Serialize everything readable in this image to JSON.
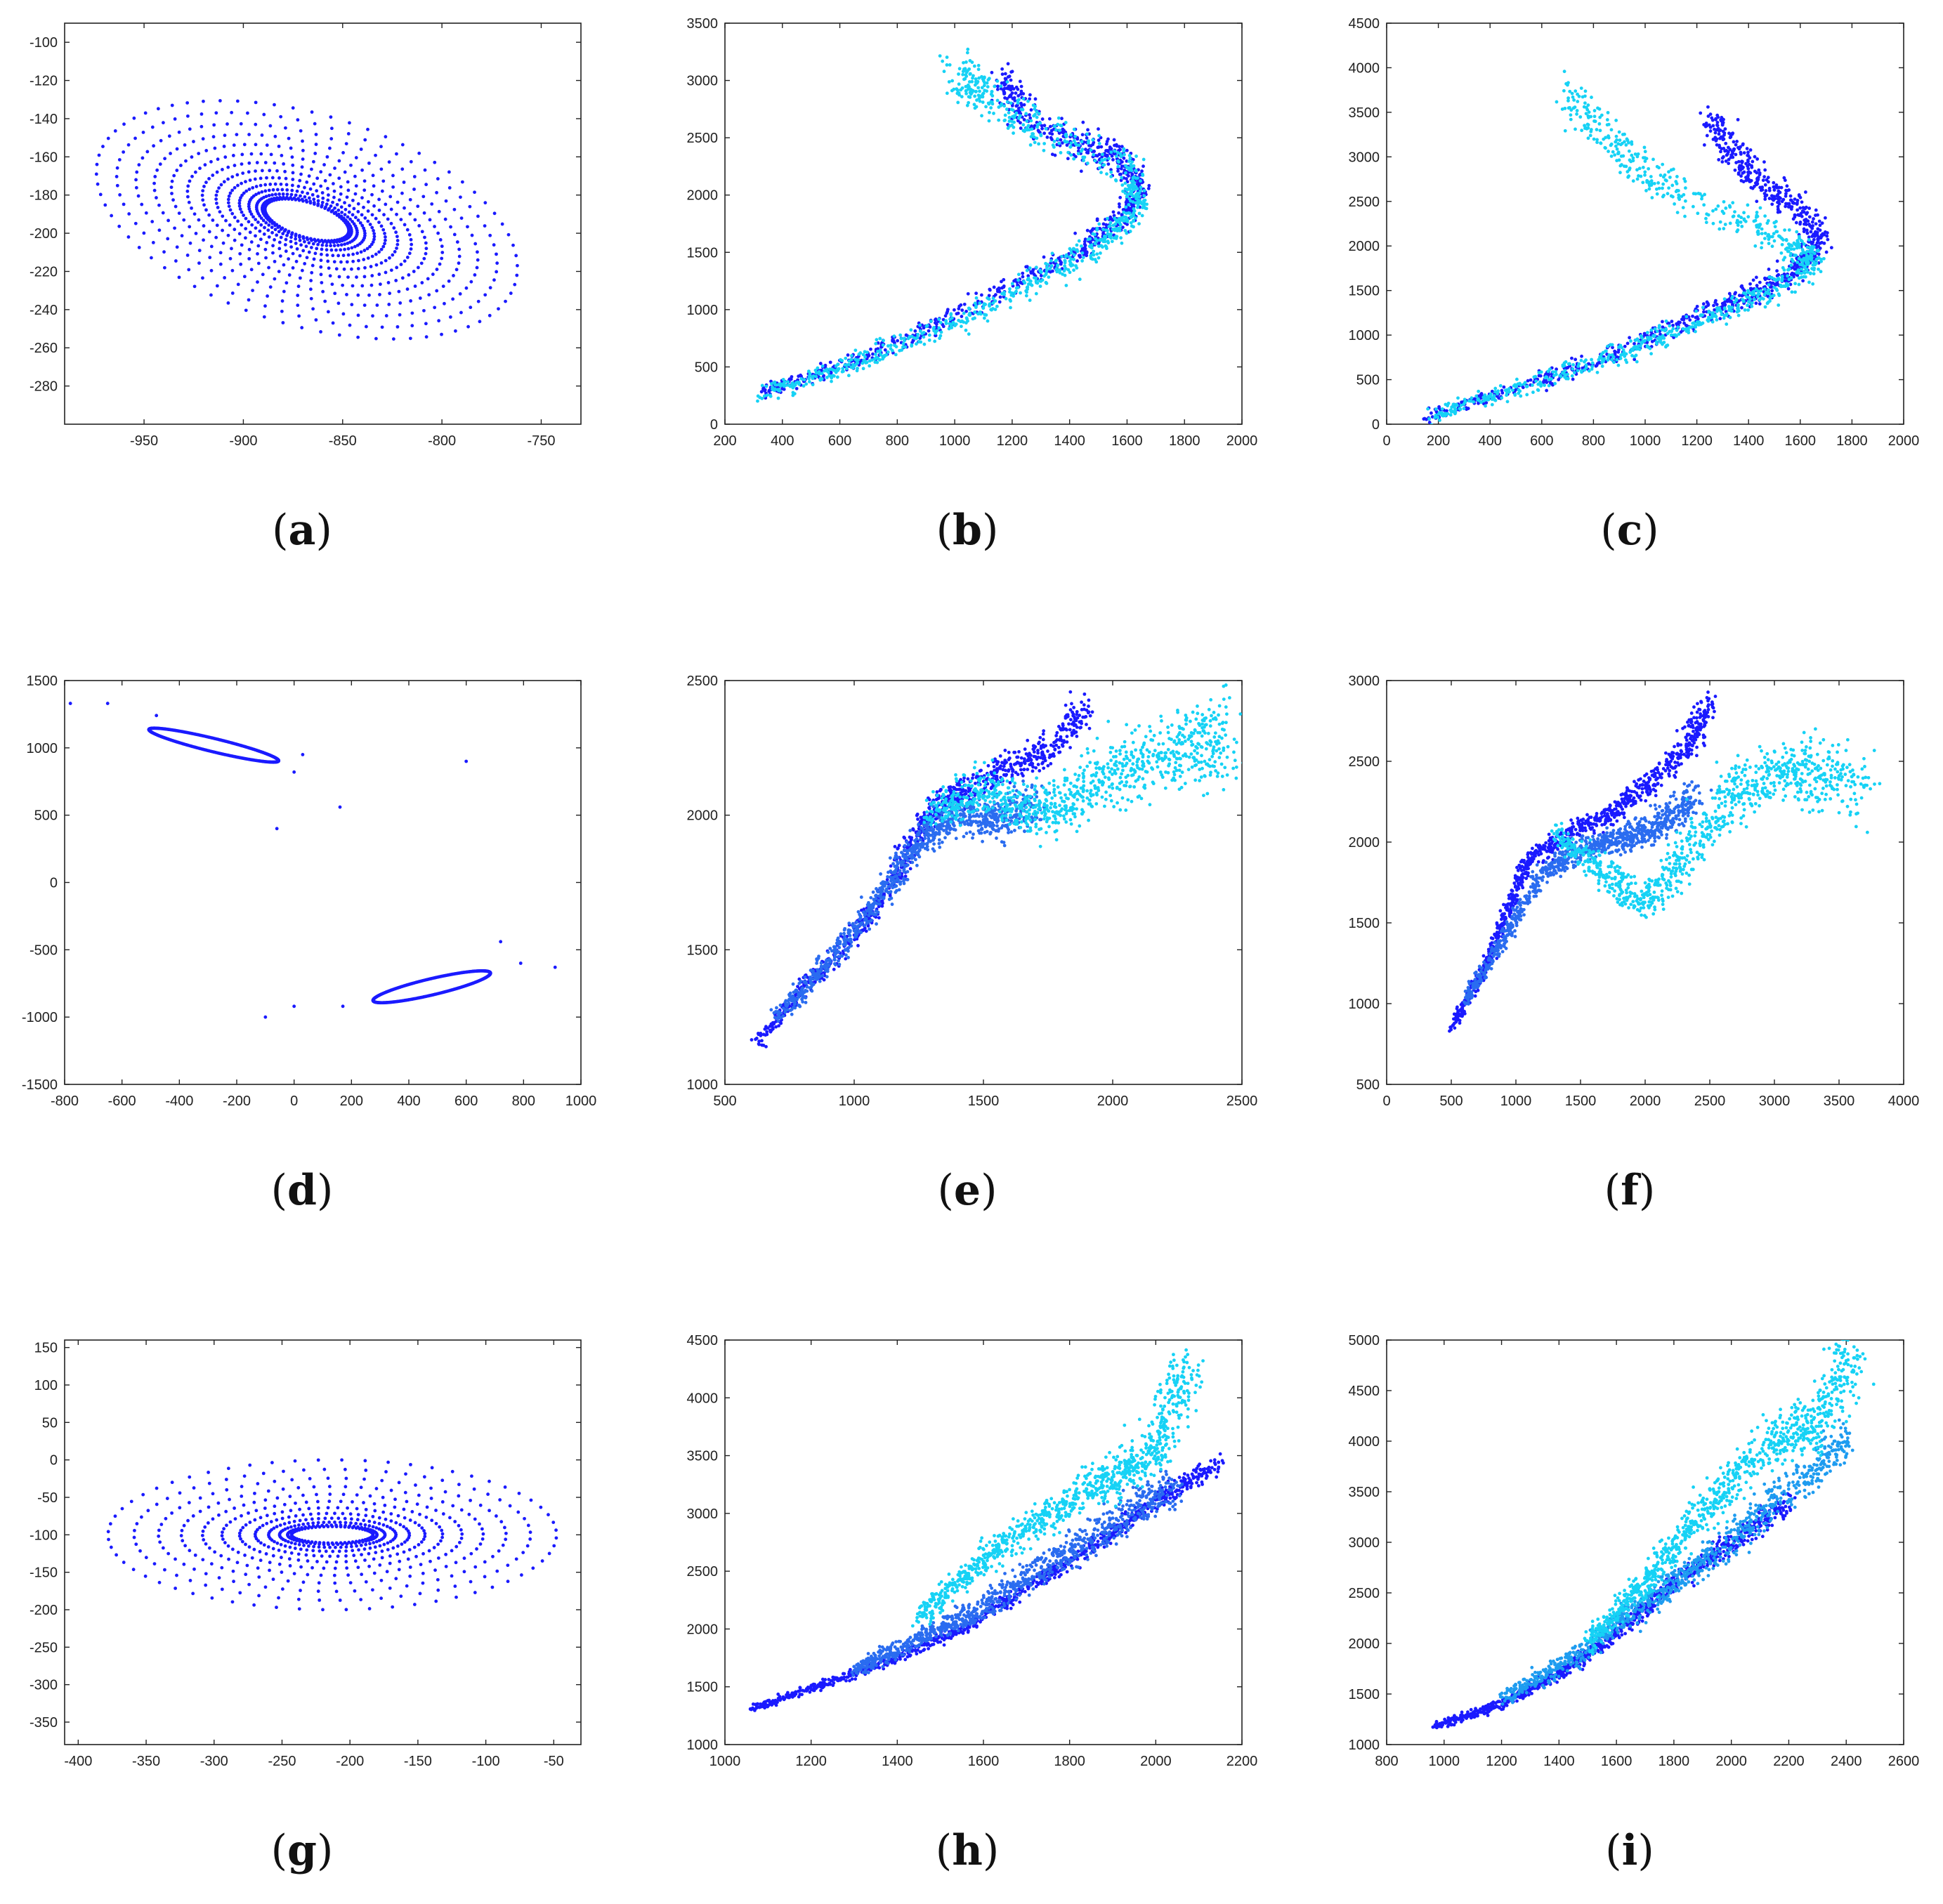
{
  "figure_title": "",
  "colors": {
    "dark_blue": "#1a1aff",
    "mid_blue": "#2a6cf0",
    "light_blue": "#1e9cf0",
    "cyan": "#16d2f5",
    "axis": "#222222"
  },
  "chart_data": [
    {
      "id": "a",
      "type": "scatter",
      "label": "a",
      "caption": "(a)",
      "xlim": [
        -990,
        -730
      ],
      "ylim": [
        -300,
        -90
      ],
      "xticks": [
        -950,
        -900,
        -850,
        -800,
        -750
      ],
      "yticks": [
        -100,
        -120,
        -140,
        -160,
        -180,
        -200,
        -220,
        -240,
        -260,
        -280
      ],
      "series": [
        {
          "name": "trajectory",
          "color": "#1a1aff",
          "shape": "radial-ellipse",
          "center": [
            -868,
            -193
          ],
          "inner_radii": [
            22,
            9
          ],
          "outer_radii": [
            110,
            55
          ],
          "tilt_deg": -18,
          "spokes": 70,
          "rings": 14,
          "notes": "dense ring of points spiralling inward toward an empty ellipse"
        }
      ]
    },
    {
      "id": "b",
      "type": "scatter",
      "label": "b",
      "caption": "(b)",
      "xlim": [
        200,
        2000
      ],
      "ylim": [
        0,
        3500
      ],
      "xticks": [
        200,
        400,
        600,
        800,
        1000,
        1200,
        1400,
        1600,
        1800,
        2000
      ],
      "yticks": [
        0,
        500,
        1000,
        1500,
        2000,
        2500,
        3000,
        3500
      ],
      "series": [
        {
          "name": "dark",
          "color": "#1a1aff",
          "path": [
            [
              330,
              270
            ],
            [
              600,
              500
            ],
            [
              900,
              820
            ],
            [
              1200,
              1200
            ],
            [
              1450,
              1550
            ],
            [
              1600,
              1850
            ],
            [
              1650,
              2100
            ],
            [
              1560,
              2350
            ],
            [
              1400,
              2450
            ],
            [
              1250,
              2700
            ],
            [
              1150,
              3050
            ]
          ],
          "spread": [
            40,
            170
          ]
        },
        {
          "name": "cyan",
          "color": "#16d2f5",
          "path": [
            [
              330,
              260
            ],
            [
              620,
              505
            ],
            [
              950,
              840
            ],
            [
              1250,
              1210
            ],
            [
              1500,
              1560
            ],
            [
              1640,
              1900
            ],
            [
              1600,
              2250
            ],
            [
              1300,
              2550
            ],
            [
              1100,
              2900
            ],
            [
              1000,
              3100
            ]
          ],
          "spread": [
            50,
            200
          ]
        }
      ]
    },
    {
      "id": "c",
      "type": "scatter",
      "label": "c",
      "caption": "(c)",
      "xlim": [
        0,
        2000
      ],
      "ylim": [
        0,
        4500
      ],
      "xticks": [
        0,
        200,
        400,
        600,
        800,
        1000,
        1200,
        1400,
        1600,
        1800,
        2000
      ],
      "yticks": [
        0,
        500,
        1000,
        1500,
        2000,
        2500,
        3000,
        3500,
        4000,
        4500
      ],
      "series": [
        {
          "name": "dark",
          "color": "#1a1aff",
          "path": [
            [
              150,
              90
            ],
            [
              500,
              400
            ],
            [
              900,
              800
            ],
            [
              1200,
              1200
            ],
            [
              1450,
              1500
            ],
            [
              1620,
              1800
            ],
            [
              1680,
              2050
            ],
            [
              1600,
              2400
            ],
            [
              1450,
              2700
            ],
            [
              1350,
              3000
            ],
            [
              1250,
              3400
            ]
          ],
          "spread": [
            50,
            220
          ]
        },
        {
          "name": "cyan",
          "color": "#16d2f5",
          "path": [
            [
              160,
              80
            ],
            [
              520,
              405
            ],
            [
              920,
              810
            ],
            [
              1250,
              1210
            ],
            [
              1500,
              1520
            ],
            [
              1660,
              1850
            ],
            [
              1450,
              2200
            ],
            [
              1100,
              2600
            ],
            [
              900,
              3100
            ],
            [
              700,
              3700
            ]
          ],
          "spread": [
            60,
            240
          ]
        }
      ]
    },
    {
      "id": "d",
      "type": "scatter",
      "label": "d",
      "caption": "(d)",
      "xlim": [
        -800,
        1000
      ],
      "ylim": [
        -1500,
        1500
      ],
      "xticks": [
        -800,
        -600,
        -400,
        -200,
        0,
        200,
        400,
        600,
        800,
        1000
      ],
      "yticks": [
        -1500,
        -1000,
        -500,
        0,
        500,
        1000,
        1500
      ],
      "series": [
        {
          "name": "trajectory",
          "color": "#1a1aff",
          "ellipses": [
            {
              "center": [
                -280,
                1020
              ],
              "radii": [
                255,
                45
              ],
              "tilt_deg": -28
            },
            {
              "center": [
                480,
                -775
              ],
              "radii": [
                230,
                55
              ],
              "tilt_deg": 28
            }
          ],
          "outliers": [
            [
              -780,
              1330
            ],
            [
              -650,
              1330
            ],
            [
              -480,
              1240
            ],
            [
              -60,
              400
            ],
            [
              0,
              820
            ],
            [
              30,
              950
            ],
            [
              160,
              560
            ],
            [
              600,
              900
            ],
            [
              910,
              -630
            ],
            [
              -100,
              -1000
            ],
            [
              0,
              -920
            ],
            [
              170,
              -920
            ],
            [
              720,
              -440
            ],
            [
              790,
              -600
            ]
          ]
        }
      ]
    },
    {
      "id": "e",
      "type": "scatter",
      "label": "e",
      "caption": "(e)",
      "xlim": [
        500,
        2500
      ],
      "ylim": [
        1000,
        2500
      ],
      "xticks": [
        500,
        1000,
        1500,
        2000,
        2500
      ],
      "yticks": [
        1000,
        1500,
        2000,
        2500
      ],
      "series": [
        {
          "name": "dark",
          "color": "#1a1aff",
          "path": [
            [
              620,
              1150
            ],
            [
              800,
              1350
            ],
            [
              1000,
              1550
            ],
            [
              1150,
              1750
            ],
            [
              1250,
              1950
            ],
            [
              1350,
              2050
            ],
            [
              1450,
              2100
            ],
            [
              1600,
              2180
            ],
            [
              1750,
              2250
            ],
            [
              1900,
              2400
            ]
          ],
          "spread": [
            60,
            70
          ]
        },
        {
          "name": "mid",
          "color": "#2a6cf0",
          "path": [
            [
              700,
              1250
            ],
            [
              900,
              1450
            ],
            [
              1100,
              1700
            ],
            [
              1250,
              1900
            ],
            [
              1400,
              2000
            ],
            [
              1550,
              1980
            ],
            [
              1700,
              2050
            ]
          ],
          "spread": [
            70,
            80
          ]
        },
        {
          "name": "cyan",
          "color": "#16d2f5",
          "path": [
            [
              1300,
              2000
            ],
            [
              1500,
              2100
            ],
            [
              1700,
              2000
            ],
            [
              1900,
              2100
            ],
            [
              2100,
              2200
            ],
            [
              2300,
              2250
            ],
            [
              2430,
              2280
            ]
          ],
          "spread": [
            110,
            170
          ]
        }
      ]
    },
    {
      "id": "f",
      "type": "scatter",
      "label": "f",
      "caption": "(f)",
      "xlim": [
        0,
        4000
      ],
      "ylim": [
        500,
        3000
      ],
      "xticks": [
        0,
        500,
        1000,
        1500,
        2000,
        2500,
        3000,
        3500,
        4000
      ],
      "yticks": [
        500,
        1000,
        1500,
        2000,
        2500,
        3000
      ],
      "series": [
        {
          "name": "dark",
          "color": "#1a1aff",
          "path": [
            [
              500,
              850
            ],
            [
              750,
              1200
            ],
            [
              950,
              1600
            ],
            [
              1100,
              1900
            ],
            [
              1400,
              2050
            ],
            [
              1700,
              2150
            ],
            [
              2000,
              2350
            ],
            [
              2300,
              2550
            ],
            [
              2500,
              2850
            ]
          ],
          "spread": [
            80,
            90
          ]
        },
        {
          "name": "mid",
          "color": "#2a6cf0",
          "path": [
            [
              600,
              1000
            ],
            [
              900,
              1400
            ],
            [
              1200,
              1800
            ],
            [
              1500,
              1950
            ],
            [
              1800,
              2000
            ],
            [
              2100,
              2100
            ],
            [
              2400,
              2300
            ]
          ],
          "spread": [
            100,
            100
          ]
        },
        {
          "name": "cyan",
          "color": "#16d2f5",
          "path": [
            [
              1300,
              2050
            ],
            [
              1700,
              1800
            ],
            [
              2000,
              1600
            ],
            [
              2300,
              1900
            ],
            [
              2700,
              2300
            ],
            [
              3000,
              2450
            ],
            [
              3300,
              2420
            ],
            [
              3650,
              2360
            ]
          ],
          "spread": [
            180,
            230
          ]
        }
      ]
    },
    {
      "id": "g",
      "type": "scatter",
      "label": "g",
      "caption": "(g)",
      "xlim": [
        -410,
        -30
      ],
      "ylim": [
        -380,
        160
      ],
      "xticks": [
        -400,
        -350,
        -300,
        -250,
        -200,
        -150,
        -100,
        -50
      ],
      "yticks": [
        150,
        100,
        50,
        0,
        -50,
        -100,
        -150,
        -200,
        -250,
        -300,
        -350
      ],
      "series": [
        {
          "name": "trajectory",
          "color": "#1a1aff",
          "shape": "radial-ellipse",
          "center": [
            -213,
            -100
          ],
          "inner_radii": [
            30,
            11
          ],
          "outer_radii": [
            165,
            100
          ],
          "tilt_deg": 0,
          "spokes": 60,
          "rings": 12,
          "notes": "points spiralling inward toward an empty horizontal ellipse"
        }
      ]
    },
    {
      "id": "h",
      "type": "scatter",
      "label": "h",
      "caption": "(h)",
      "xlim": [
        1000,
        2200
      ],
      "ylim": [
        1000,
        4500
      ],
      "xticks": [
        1000,
        1200,
        1400,
        1600,
        1800,
        2000,
        2200
      ],
      "yticks": [
        1000,
        1500,
        2000,
        2500,
        3000,
        3500,
        4000,
        4500
      ],
      "series": [
        {
          "name": "dark",
          "color": "#1a1aff",
          "path": [
            [
              1060,
              1310
            ],
            [
              1250,
              1550
            ],
            [
              1400,
              1750
            ],
            [
              1550,
              2000
            ],
            [
              1700,
              2350
            ],
            [
              1850,
              2700
            ],
            [
              2000,
              3100
            ],
            [
              2150,
              3450
            ]
          ],
          "spread": [
            20,
            80
          ]
        },
        {
          "name": "mid",
          "color": "#2a6cf0",
          "path": [
            [
              1300,
              1650
            ],
            [
              1450,
              1900
            ],
            [
              1600,
              2200
            ],
            [
              1750,
              2550
            ],
            [
              1900,
              2900
            ],
            [
              2050,
              3250
            ]
          ],
          "spread": [
            30,
            180
          ]
        },
        {
          "name": "cyan",
          "color": "#16d2f5",
          "path": [
            [
              1450,
              2100
            ],
            [
              1600,
              2600
            ],
            [
              1750,
              3000
            ],
            [
              1900,
              3300
            ],
            [
              2000,
              3550
            ],
            [
              2080,
              4350
            ]
          ],
          "spread": [
            40,
            260
          ]
        }
      ]
    },
    {
      "id": "i",
      "type": "scatter",
      "label": "i",
      "caption": "(i)",
      "xlim": [
        800,
        2600
      ],
      "ylim": [
        1000,
        5000
      ],
      "xticks": [
        800,
        1000,
        1200,
        1400,
        1600,
        1800,
        2000,
        2200,
        2400,
        2600
      ],
      "yticks": [
        1000,
        1500,
        2000,
        2500,
        3000,
        3500,
        4000,
        4500,
        5000
      ],
      "series": [
        {
          "name": "dark",
          "color": "#1a1aff",
          "path": [
            [
              960,
              1170
            ],
            [
              1200,
              1400
            ],
            [
              1400,
              1700
            ],
            [
              1600,
              2100
            ],
            [
              1800,
              2600
            ],
            [
              2000,
              3000
            ],
            [
              2200,
              3400
            ]
          ],
          "spread": [
            30,
            110
          ]
        },
        {
          "name": "mid",
          "color": "#1e9cf0",
          "path": [
            [
              1200,
              1450
            ],
            [
              1450,
              1850
            ],
            [
              1700,
              2400
            ],
            [
              1950,
              2900
            ],
            [
              2200,
              3500
            ],
            [
              2400,
              4000
            ]
          ],
          "spread": [
            45,
            220
          ]
        },
        {
          "name": "cyan",
          "color": "#16d2f5",
          "path": [
            [
              1500,
              2000
            ],
            [
              1700,
              2600
            ],
            [
              1900,
              3300
            ],
            [
              2100,
              3900
            ],
            [
              2300,
              4200
            ],
            [
              2430,
              4950
            ]
          ],
          "spread": [
            60,
            320
          ]
        }
      ]
    }
  ]
}
